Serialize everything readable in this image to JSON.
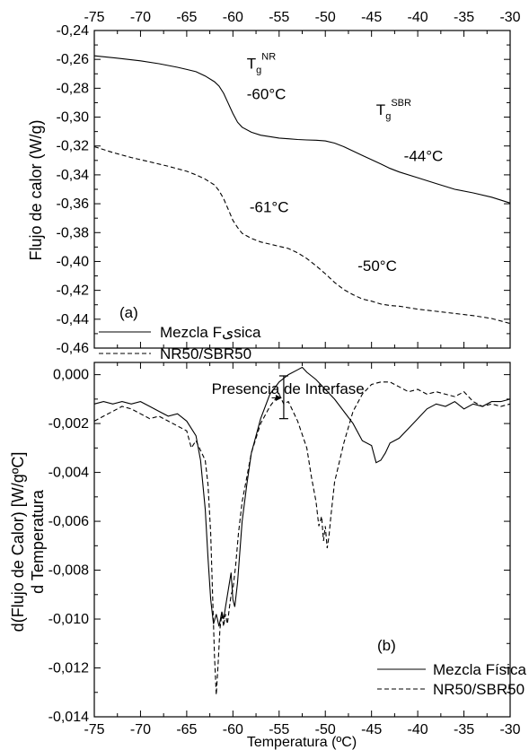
{
  "chart_data": [
    {
      "type": "line",
      "panel_label": "(a)",
      "ylabel": "Flujo de calor (W/g)",
      "xlim": [
        -75,
        -30
      ],
      "ylim": [
        -0.46,
        -0.24
      ],
      "xticks": [
        "-75",
        "-70",
        "-65",
        "-60",
        "-55",
        "-50",
        "-45",
        "-40",
        "-35",
        "-30"
      ],
      "yticks": [
        "-0,24",
        "-0,26",
        "-0,28",
        "-0,30",
        "-0,32",
        "-0,34",
        "-0,36",
        "-0,38",
        "-0,40",
        "-0,42",
        "-0,44",
        "-0,46"
      ],
      "legend_placement": "bottom-left",
      "annotations": [
        {
          "text": "T",
          "sub": "g",
          "sup": "NR",
          "x": -58.5,
          "y": -0.2665
        },
        {
          "text": "T",
          "sub": "g",
          "sup": "SBR",
          "x": -44.5,
          "y": -0.2985
        },
        {
          "text": "-60°C",
          "x": -58.5,
          "y": -0.2875
        },
        {
          "text": "-44°C",
          "x": -41.5,
          "y": -0.3305
        },
        {
          "text": "-61°C",
          "x": -58.2,
          "y": -0.366
        },
        {
          "text": "-50°C",
          "x": -46.5,
          "y": -0.4065
        }
      ],
      "series": [
        {
          "name": "Mezcla Fیsica",
          "dash": "solid",
          "x": [
            -75,
            -72,
            -70,
            -68,
            -66,
            -65,
            -64,
            -63,
            -62,
            -61.5,
            -61,
            -60.5,
            -60,
            -59.5,
            -59,
            -58,
            -57,
            -56,
            -55,
            -54,
            -53,
            -52,
            -51,
            -50,
            -49,
            -48,
            -47,
            -46,
            -45,
            -44,
            -43,
            -42,
            -40,
            -38,
            -36,
            -34,
            -32,
            -30
          ],
          "y": [
            -0.2575,
            -0.2595,
            -0.261,
            -0.263,
            -0.2655,
            -0.267,
            -0.2685,
            -0.2715,
            -0.2755,
            -0.2785,
            -0.2835,
            -0.2905,
            -0.2975,
            -0.3035,
            -0.307,
            -0.3105,
            -0.3125,
            -0.3135,
            -0.3145,
            -0.315,
            -0.3155,
            -0.3158,
            -0.316,
            -0.3165,
            -0.318,
            -0.3205,
            -0.3235,
            -0.3265,
            -0.3295,
            -0.3325,
            -0.3355,
            -0.338,
            -0.342,
            -0.346,
            -0.35,
            -0.3525,
            -0.3555,
            -0.3595
          ]
        },
        {
          "name": "NR50/SBR50",
          "dash": "dashed",
          "x": [
            -75,
            -73,
            -71,
            -69,
            -67,
            -65,
            -64,
            -63,
            -62,
            -61.5,
            -61,
            -60.5,
            -60,
            -59.5,
            -59,
            -58,
            -57,
            -56,
            -55,
            -54,
            -53,
            -52,
            -51,
            -50,
            -49,
            -48,
            -47,
            -46,
            -45,
            -44,
            -43,
            -42,
            -40,
            -38,
            -36,
            -34,
            -32,
            -30
          ],
          "y": [
            -0.3205,
            -0.3245,
            -0.328,
            -0.331,
            -0.334,
            -0.3375,
            -0.34,
            -0.343,
            -0.347,
            -0.351,
            -0.3565,
            -0.364,
            -0.3715,
            -0.3765,
            -0.3805,
            -0.384,
            -0.3865,
            -0.388,
            -0.3895,
            -0.391,
            -0.394,
            -0.398,
            -0.403,
            -0.4085,
            -0.4145,
            -0.4195,
            -0.423,
            -0.426,
            -0.4275,
            -0.4295,
            -0.4305,
            -0.431,
            -0.433,
            -0.4345,
            -0.436,
            -0.4375,
            -0.4395,
            -0.443
          ]
        }
      ]
    },
    {
      "type": "line",
      "panel_label": "(b)",
      "ylabel_line1": "d(Flujo de Calor) [W/gºC]",
      "ylabel_line2": "d Temperatura",
      "xlabel": "Temperatura (ºC)",
      "xlim": [
        -75,
        -30
      ],
      "ylim": [
        -0.014,
        0.0005
      ],
      "xticks": [
        "-75",
        "-70",
        "-65",
        "-60",
        "-55",
        "-50",
        "-45",
        "-40",
        "-35",
        "-30"
      ],
      "yticks": [
        "0,000",
        "-0,002",
        "-0,004",
        "-0,006",
        "-0,008",
        "-0,010",
        "-0,012",
        "-0,014"
      ],
      "legend_placement": "bottom-right",
      "annotations": [
        {
          "text": "Presencia de Interfase",
          "x": -62.3,
          "y": -0.00078
        }
      ],
      "series": [
        {
          "name": "Mezcla Física",
          "dash": "solid",
          "x": [
            -75,
            -74,
            -73,
            -72,
            -71,
            -70,
            -69,
            -68,
            -67,
            -66,
            -65,
            -64,
            -63.5,
            -63,
            -62.7,
            -62.4,
            -62.1,
            -61.8,
            -61.5,
            -61.2,
            -61,
            -60.8,
            -60.5,
            -60.2,
            -60,
            -59.8,
            -59.5,
            -59,
            -58.5,
            -58,
            -57,
            -56,
            -55,
            -54,
            -53,
            -52.5,
            -52,
            -51,
            -50,
            -49,
            -48,
            -47,
            -46,
            -45,
            -44.5,
            -44,
            -43.5,
            -43,
            -42,
            -41,
            -40,
            -39,
            -38,
            -37,
            -36,
            -35,
            -34,
            -33,
            -32,
            -31,
            -30
          ],
          "y": [
            -0.0012,
            -0.0011,
            -0.0012,
            -0.0011,
            -0.0012,
            -0.0011,
            -0.0013,
            -0.0015,
            -0.0017,
            -0.0016,
            -0.0019,
            -0.0025,
            -0.0035,
            -0.0055,
            -0.0075,
            -0.0092,
            -0.0102,
            -0.0098,
            -0.0103,
            -0.0097,
            -0.01,
            -0.0095,
            -0.0088,
            -0.0081,
            -0.0092,
            -0.0095,
            -0.0085,
            -0.006,
            -0.0045,
            -0.0032,
            -0.0018,
            -0.0008,
            -0.0003,
            0.0,
            0.0002,
            0.0003,
            0.0001,
            -0.0002,
            -0.0006,
            -0.001,
            -0.0015,
            -0.002,
            -0.0027,
            -0.0029,
            -0.0036,
            -0.0035,
            -0.0032,
            -0.0028,
            -0.0026,
            -0.0022,
            -0.0018,
            -0.0014,
            -0.0012,
            -0.0013,
            -0.0011,
            -0.0014,
            -0.0012,
            -0.0013,
            -0.0011,
            -0.0011,
            -0.001
          ]
        },
        {
          "name": "NR50/SBR50",
          "dash": "dashed",
          "x": [
            -75,
            -74,
            -73,
            -72,
            -71,
            -70,
            -69,
            -68,
            -67,
            -66,
            -65,
            -64.5,
            -64,
            -63.5,
            -63,
            -62.7,
            -62.4,
            -62.2,
            -62,
            -61.8,
            -61.6,
            -61.4,
            -61.2,
            -61,
            -60.8,
            -60.6,
            -60.4,
            -60.2,
            -60,
            -59.7,
            -59.4,
            -59,
            -58.5,
            -58,
            -57,
            -56,
            -55,
            -54.5,
            -54,
            -53,
            -52,
            -51.5,
            -51,
            -50.7,
            -50.4,
            -50.2,
            -50,
            -49.8,
            -49.6,
            -49.4,
            -49,
            -48,
            -47,
            -46,
            -45,
            -44,
            -43,
            -42,
            -41,
            -40,
            -39,
            -38,
            -37,
            -36,
            -35,
            -34,
            -33,
            -32,
            -31,
            -30
          ],
          "y": [
            -0.0019,
            -0.0017,
            -0.0015,
            -0.0013,
            -0.0014,
            -0.0016,
            -0.0018,
            -0.0017,
            -0.0019,
            -0.0021,
            -0.0023,
            -0.003,
            -0.0027,
            -0.0031,
            -0.0035,
            -0.0045,
            -0.0065,
            -0.009,
            -0.0115,
            -0.0131,
            -0.0118,
            -0.0104,
            -0.0098,
            -0.0103,
            -0.0098,
            -0.0102,
            -0.0096,
            -0.009,
            -0.0088,
            -0.0078,
            -0.0065,
            -0.0052,
            -0.0042,
            -0.0032,
            -0.002,
            -0.0013,
            -0.0008,
            -0.0012,
            -0.0011,
            -0.0019,
            -0.003,
            -0.0042,
            -0.0052,
            -0.0062,
            -0.0058,
            -0.0068,
            -0.0062,
            -0.0071,
            -0.0066,
            -0.0058,
            -0.0044,
            -0.0028,
            -0.0015,
            -0.0008,
            -0.0004,
            -0.0003,
            -0.0003,
            -0.0005,
            -0.0007,
            -0.0006,
            -0.0008,
            -0.0007,
            -0.0008,
            -0.0009,
            -0.0007,
            -0.0011,
            -0.0013,
            -0.0012,
            -0.0013,
            -0.0012
          ]
        }
      ]
    }
  ]
}
